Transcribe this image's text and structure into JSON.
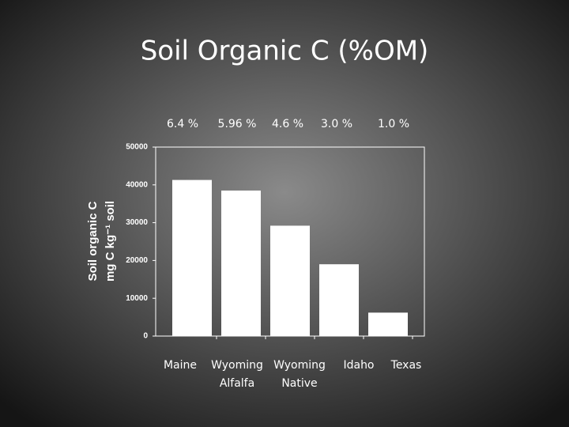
{
  "chart_data": {
    "type": "bar",
    "title": "Soil Organic C (%OM)",
    "annotations": [
      "6.4 %",
      "5.96 %",
      "4.6 %",
      "3.0 %",
      "1.0 %"
    ],
    "categories": [
      "Maine",
      "Wyoming\nAlfalfa",
      "Wyoming\nNative",
      "Idaho",
      "Texas"
    ],
    "values": [
      41300,
      38500,
      29200,
      19000,
      6200
    ],
    "color": "#ffffff",
    "ylabel": [
      "Soil organic C",
      "mg C kg⁻¹ soil"
    ],
    "ylim": [
      0,
      50000
    ],
    "yticks": [
      0,
      10000,
      20000,
      30000,
      40000,
      50000
    ],
    "grid": false
  }
}
